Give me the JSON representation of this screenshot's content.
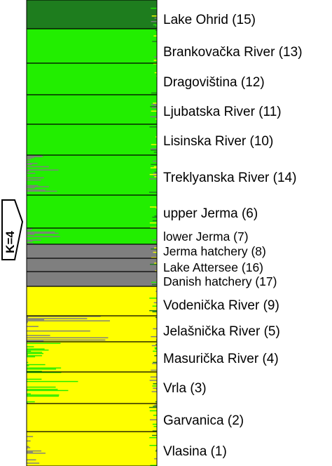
{
  "chart_data": {
    "type": "bar",
    "orientation": "horizontal-stacked",
    "k_label": "K=4",
    "cluster_colors": {
      "dark_green": "#1e7d1e",
      "green": "#22ee00",
      "gray": "#7f7f7f",
      "yellow": "#ffff00"
    },
    "xlim": [
      0,
      1
    ],
    "populations": [
      {
        "label": "Lake Ohrid (15)",
        "n": 15,
        "dominant": "dark_green"
      },
      {
        "label": "Brankovačka River (13)",
        "n": 13,
        "dominant": "green"
      },
      {
        "label": "Dragoviština (12)",
        "n": 12,
        "dominant": "green"
      },
      {
        "label": "Ljubatska River (11)",
        "n": 11,
        "dominant": "green"
      },
      {
        "label": "Lisinska River (10)",
        "n": 10,
        "dominant": "green"
      },
      {
        "label": "Treklyanska River (14)",
        "n": 14,
        "dominant": "green"
      },
      {
        "label": "upper Jerma (6)",
        "n": 6,
        "dominant": "green"
      },
      {
        "label": "lower Jerma (7)",
        "n": 7,
        "dominant": "green"
      },
      {
        "label": "Jerma hatchery (8)",
        "n": 8,
        "dominant": "gray"
      },
      {
        "label": "Lake Attersee (16)",
        "n": 16,
        "dominant": "gray"
      },
      {
        "label": "Danish hatchery (17)",
        "n": 17,
        "dominant": "gray"
      },
      {
        "label": "Vodenička River (9)",
        "n": 9,
        "dominant": "yellow"
      },
      {
        "label": "Jelašnička River (5)",
        "n": 5,
        "dominant": "yellow"
      },
      {
        "label": "Masurička River (4)",
        "n": 4,
        "dominant": "yellow"
      },
      {
        "label": "Vrla (3)",
        "n": 3,
        "dominant": "yellow"
      },
      {
        "label": "Garvanica (2)",
        "n": 2,
        "dominant": "yellow"
      },
      {
        "label": "Vlasina (1)",
        "n": 1,
        "dominant": "yellow"
      }
    ],
    "admixture_notes": [
      {
        "population": "Treklyanska River (14)",
        "secondary": "gray",
        "max_fraction": 0.25
      },
      {
        "population": "lower Jerma (7)",
        "secondary": "gray",
        "max_fraction": 0.35
      },
      {
        "population": "Jelašnička River (5)",
        "secondary": "gray",
        "max_fraction": 0.65
      },
      {
        "population": "Masurička River (4)",
        "secondary": "green",
        "max_fraction": 0.3
      },
      {
        "population": "Vrla (3)",
        "secondary": "green",
        "max_fraction": 0.5
      },
      {
        "population": "Vlasina (1)",
        "secondary": "gray",
        "max_fraction": 0.15
      }
    ]
  }
}
